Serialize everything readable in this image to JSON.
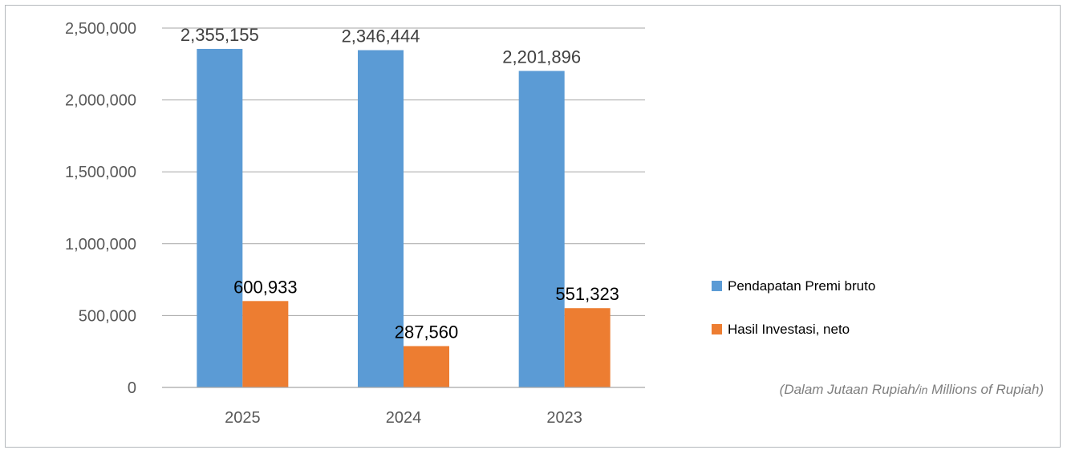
{
  "chart_data": {
    "type": "bar",
    "categories": [
      "2025",
      "2024",
      "2023"
    ],
    "series": [
      {
        "name": "Pendapatan Premi bruto",
        "values": [
          2355155,
          2346444,
          2201896
        ],
        "labels": [
          "2,355,155",
          "2,346,444",
          "2,201,896"
        ],
        "color": "#5b9bd5",
        "label_color": "#404040"
      },
      {
        "name": "Hasil Investasi, neto",
        "values": [
          600933,
          287560,
          551323
        ],
        "labels": [
          "600,933",
          "287,560",
          "551,323"
        ],
        "color": "#ed7d31",
        "label_color": "#000000"
      }
    ],
    "ylim": [
      0,
      2500000
    ],
    "yticks": [
      0,
      500000,
      1000000,
      1500000,
      2000000,
      2500000
    ],
    "ytick_labels": [
      "0",
      "500,000",
      "1,000,000",
      "1,500,000",
      "2,000,000",
      "2,500,000"
    ],
    "grid": true,
    "legend_position": "right",
    "note_parts": [
      "(Dalam Jutaan Rupiah/",
      "in",
      " Millions of Rupiah)"
    ]
  }
}
